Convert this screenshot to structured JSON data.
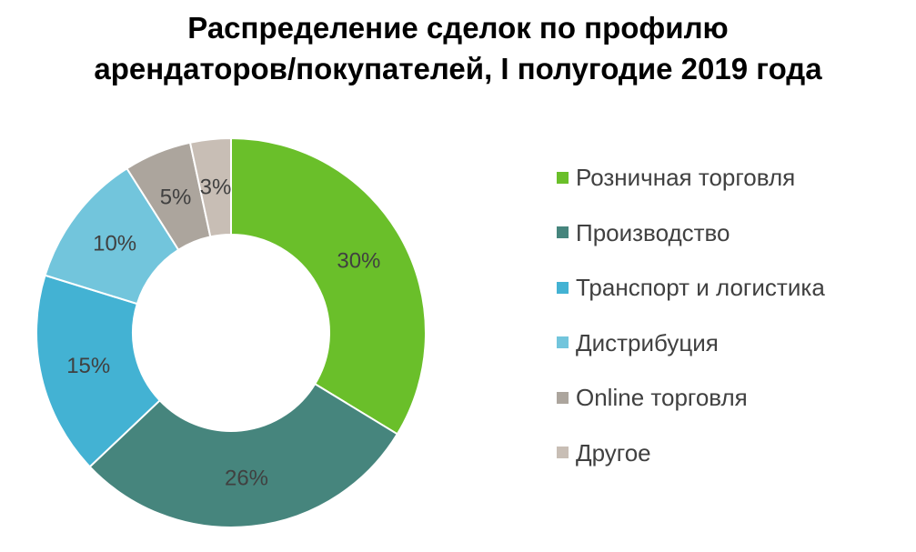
{
  "chart_data": {
    "type": "donut",
    "title_lines": [
      "Распределение сделок по профилю",
      "арендаторов/покупателей, I полугодие 2019 года"
    ],
    "categories": [
      "Розничная торговля",
      "Производство",
      "Транспорт и логистика",
      "Дистрибуция",
      "Online торговля",
      "Другое"
    ],
    "values": [
      30,
      26,
      15,
      10,
      5,
      3
    ],
    "labels": [
      "30%",
      "26%",
      "15%",
      "10%",
      "5%",
      "3%"
    ],
    "colors": [
      "#6abf2a",
      "#46857d",
      "#43b2d3",
      "#72c5dc",
      "#aca59d",
      "#c8beb5"
    ],
    "legend_position": "right"
  }
}
